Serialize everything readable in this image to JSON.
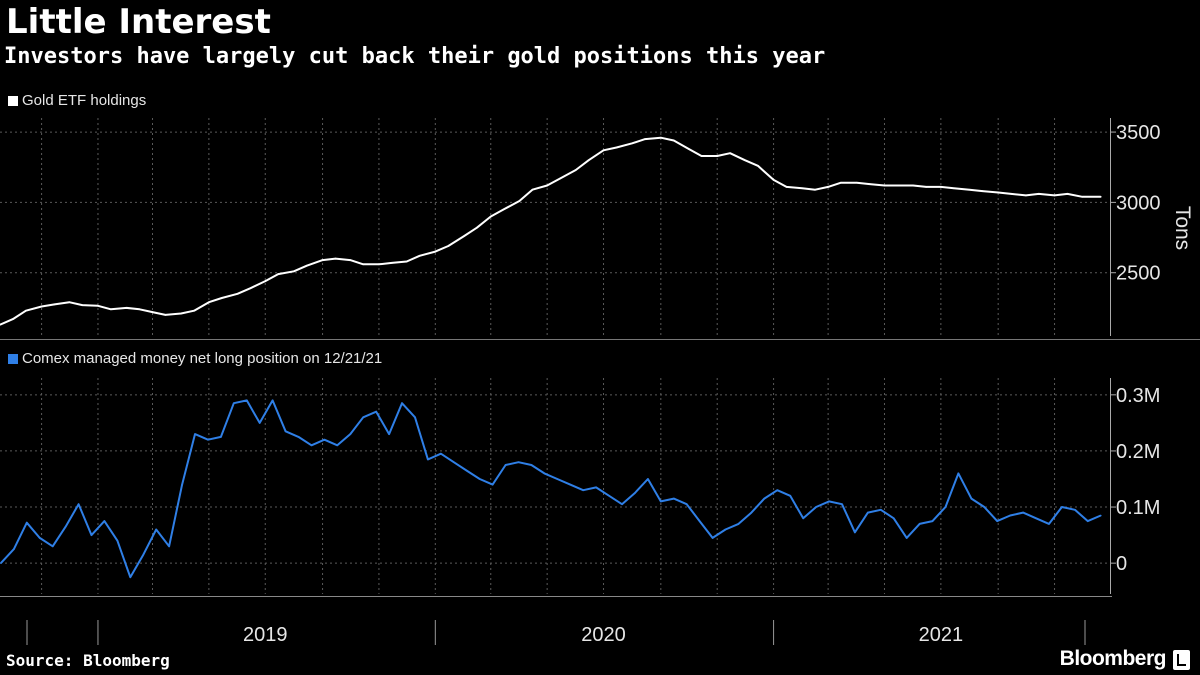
{
  "title": "Little Interest",
  "subtitle": "Investors have largely cut back their gold positions this year",
  "source": "Source: Bloomberg",
  "brand": "Bloomberg",
  "colors": {
    "background": "#000000",
    "gold_etf": "#ffffff",
    "comex": "#2f7fe6",
    "grid": "#555555"
  },
  "chart_data": [
    {
      "type": "line",
      "title": "",
      "legend": "Gold ETF holdings",
      "ylabel": "Tons",
      "ylim": [
        2050,
        3600
      ],
      "yticks": [
        2500,
        3000,
        3500
      ],
      "ytick_labels": [
        "2500",
        "3000",
        "3500"
      ],
      "grid": true,
      "series": [
        {
          "name": "Gold ETF holdings",
          "color": "#ffffff",
          "x": [
            "2018-09-17",
            "2018-10-01",
            "2018-10-15",
            "2018-11-01",
            "2018-11-15",
            "2018-12-01",
            "2018-12-15",
            "2019-01-01",
            "2019-01-15",
            "2019-02-01",
            "2019-02-15",
            "2019-03-01",
            "2019-03-15",
            "2019-04-01",
            "2019-04-15",
            "2019-05-01",
            "2019-05-15",
            "2019-06-01",
            "2019-06-15",
            "2019-07-01",
            "2019-07-15",
            "2019-08-01",
            "2019-08-15",
            "2019-09-01",
            "2019-09-15",
            "2019-10-01",
            "2019-10-15",
            "2019-11-01",
            "2019-11-15",
            "2019-12-01",
            "2019-12-15",
            "2020-01-01",
            "2020-01-15",
            "2020-02-01",
            "2020-02-15",
            "2020-03-01",
            "2020-03-15",
            "2020-04-01",
            "2020-04-15",
            "2020-05-01",
            "2020-05-15",
            "2020-06-01",
            "2020-06-15",
            "2020-07-01",
            "2020-07-15",
            "2020-08-01",
            "2020-08-15",
            "2020-09-01",
            "2020-09-15",
            "2020-10-01",
            "2020-10-15",
            "2020-11-01",
            "2020-11-15",
            "2020-12-01",
            "2020-12-15",
            "2021-01-01",
            "2021-01-15",
            "2021-02-01",
            "2021-02-15",
            "2021-03-01",
            "2021-03-15",
            "2021-04-01",
            "2021-04-15",
            "2021-05-01",
            "2021-05-15",
            "2021-06-01",
            "2021-06-15",
            "2021-07-01",
            "2021-07-15",
            "2021-08-01",
            "2021-08-15",
            "2021-09-01",
            "2021-09-15",
            "2021-10-01",
            "2021-10-15",
            "2021-11-01",
            "2021-11-15",
            "2021-12-01",
            "2021-12-21"
          ],
          "values": [
            2130,
            2170,
            2230,
            2260,
            2275,
            2290,
            2270,
            2265,
            2240,
            2250,
            2240,
            2220,
            2200,
            2210,
            2230,
            2290,
            2320,
            2350,
            2390,
            2440,
            2490,
            2510,
            2550,
            2590,
            2600,
            2590,
            2560,
            2560,
            2570,
            2580,
            2620,
            2650,
            2690,
            2760,
            2820,
            2900,
            2950,
            3010,
            3090,
            3120,
            3170,
            3230,
            3300,
            3370,
            3390,
            3420,
            3450,
            3460,
            3440,
            3380,
            3330,
            3330,
            3350,
            3300,
            3260,
            3160,
            3110,
            3100,
            3090,
            3110,
            3140,
            3140,
            3130,
            3120,
            3120,
            3120,
            3110,
            3110,
            3100,
            3090,
            3080,
            3070,
            3060,
            3050,
            3060,
            3050,
            3060,
            3040,
            3040
          ]
        }
      ]
    },
    {
      "type": "line",
      "title": "",
      "legend": "Comex managed money net long position on 12/21/21",
      "ylim": [
        -55000,
        330000
      ],
      "yticks": [
        0,
        100000,
        200000,
        300000
      ],
      "ytick_labels": [
        "0",
        "0.1M",
        "0.2M",
        "0.3M"
      ],
      "grid": true,
      "xticks": [
        "2019",
        "2020",
        "2021"
      ],
      "series": [
        {
          "name": "Comex managed money net long position on 12/21/21",
          "color": "#2f7fe6",
          "x": [
            "2018-09-18",
            "2018-10-02",
            "2018-10-16",
            "2018-10-30",
            "2018-11-13",
            "2018-11-27",
            "2018-12-11",
            "2018-12-25",
            "2019-01-08",
            "2019-01-22",
            "2019-02-05",
            "2019-02-19",
            "2019-03-05",
            "2019-03-19",
            "2019-04-02",
            "2019-04-16",
            "2019-04-30",
            "2019-05-14",
            "2019-05-28",
            "2019-06-11",
            "2019-06-25",
            "2019-07-09",
            "2019-07-23",
            "2019-08-06",
            "2019-08-20",
            "2019-09-03",
            "2019-09-17",
            "2019-10-01",
            "2019-10-15",
            "2019-10-29",
            "2019-11-12",
            "2019-11-26",
            "2019-12-10",
            "2019-12-24",
            "2020-01-07",
            "2020-01-21",
            "2020-02-04",
            "2020-02-18",
            "2020-03-03",
            "2020-03-17",
            "2020-03-31",
            "2020-04-14",
            "2020-04-28",
            "2020-05-12",
            "2020-05-26",
            "2020-06-09",
            "2020-06-23",
            "2020-07-07",
            "2020-07-21",
            "2020-08-04",
            "2020-08-18",
            "2020-09-01",
            "2020-09-15",
            "2020-09-29",
            "2020-10-13",
            "2020-10-27",
            "2020-11-10",
            "2020-11-24",
            "2020-12-08",
            "2020-12-22",
            "2021-01-05",
            "2021-01-19",
            "2021-02-02",
            "2021-02-16",
            "2021-03-02",
            "2021-03-16",
            "2021-03-30",
            "2021-04-13",
            "2021-04-27",
            "2021-05-11",
            "2021-05-25",
            "2021-06-08",
            "2021-06-22",
            "2021-07-06",
            "2021-07-20",
            "2021-08-03",
            "2021-08-17",
            "2021-08-31",
            "2021-09-14",
            "2021-09-28",
            "2021-10-12",
            "2021-10-26",
            "2021-11-09",
            "2021-11-23",
            "2021-12-07",
            "2021-12-21"
          ],
          "values": [
            0,
            25000,
            72000,
            45000,
            30000,
            65000,
            105000,
            50000,
            75000,
            40000,
            -25000,
            15000,
            60000,
            30000,
            140000,
            230000,
            220000,
            225000,
            285000,
            290000,
            250000,
            290000,
            235000,
            225000,
            210000,
            220000,
            210000,
            230000,
            260000,
            270000,
            230000,
            285000,
            260000,
            185000,
            195000,
            180000,
            165000,
            150000,
            140000,
            175000,
            180000,
            175000,
            160000,
            150000,
            140000,
            130000,
            135000,
            120000,
            105000,
            125000,
            150000,
            110000,
            115000,
            105000,
            75000,
            45000,
            60000,
            70000,
            90000,
            115000,
            130000,
            120000,
            80000,
            100000,
            110000,
            105000,
            55000,
            90000,
            95000,
            80000,
            45000,
            70000,
            75000,
            100000,
            160000,
            115000,
            100000,
            75000,
            85000,
            90000,
            80000,
            70000,
            100000,
            95000,
            75000,
            85000
          ]
        }
      ]
    }
  ]
}
